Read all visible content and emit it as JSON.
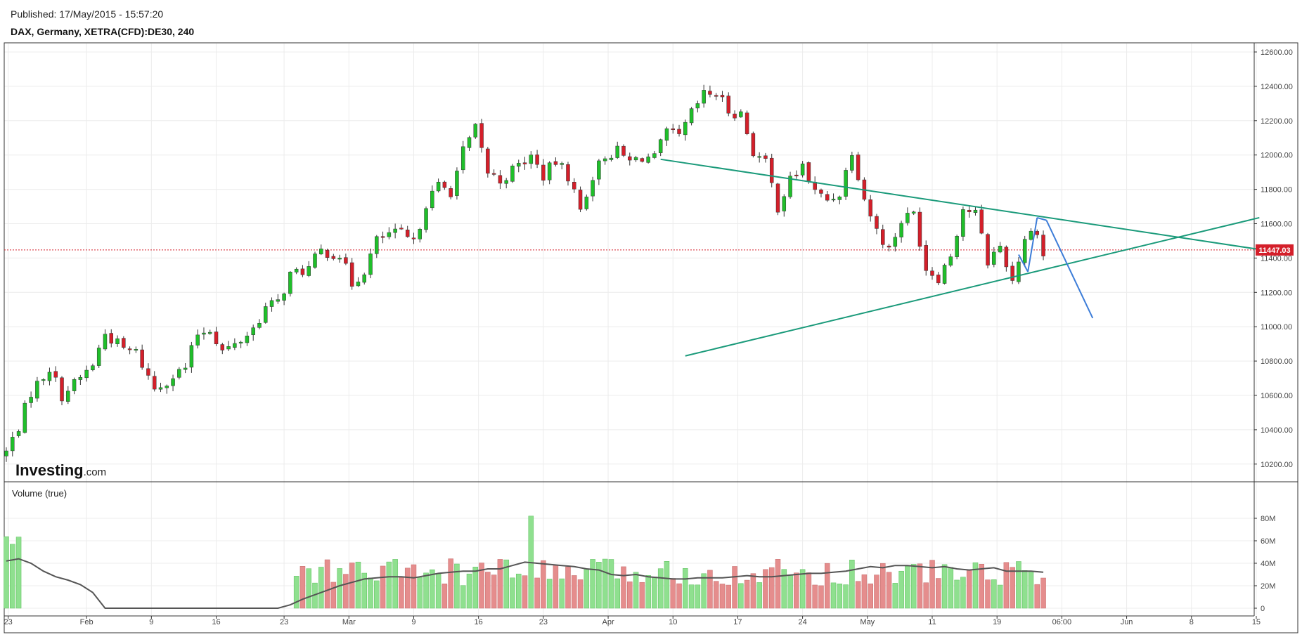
{
  "header": {
    "published": "Published: 17/May/2015 - 15:57:20",
    "instrument": "DAX, Germany, XETRA(CFD):DE30, 240"
  },
  "brand": {
    "bold": "Investing",
    "suffix": ".com"
  },
  "colors": {
    "up": "#1fbf2a",
    "down": "#d41f2a",
    "trendline": "#1a9a7a",
    "projection": "#3d7dd8",
    "price_line": "#d41f2a",
    "volume_up": "#8fe08f",
    "volume_down": "#e58d8d",
    "volume_ma": "#555555"
  },
  "chart_data": [
    {
      "type": "candlestick",
      "title": "DAX, Germany, XETRA(CFD):DE30, 240",
      "ylim": [
        10100,
        12700
      ],
      "y_ticks": [
        "12600.00",
        "12400.00",
        "12200.00",
        "12000.00",
        "11800.00",
        "11600.00",
        "11400.00",
        "11200.00",
        "11000.00",
        "10800.00",
        "10600.00",
        "10400.00",
        "10200.00"
      ],
      "y_tick_values": [
        12600,
        12400,
        12200,
        12000,
        11800,
        11600,
        11400,
        11200,
        11000,
        10800,
        10600,
        10400,
        10200
      ],
      "x_ticks": [
        "23",
        "Feb",
        "9",
        "16",
        "23",
        "Mar",
        "9",
        "16",
        "23",
        "Apr",
        "10",
        "17",
        "24",
        "May",
        "11",
        "19",
        "06:00",
        "Jun",
        "8",
        "15"
      ],
      "x_tick_index": [
        0.3,
        13,
        23.5,
        34,
        45,
        55.5,
        66,
        76.5,
        87,
        97.5,
        108,
        118.5,
        129,
        139.5,
        150,
        160.5,
        171,
        181.5,
        192,
        202.5
      ],
      "current_price": "11447.03",
      "current_value": 11447.03,
      "anchors": [
        [
          0,
          10270
        ],
        [
          2,
          10420
        ],
        [
          4,
          10620
        ],
        [
          7,
          10760
        ],
        [
          9,
          10600
        ],
        [
          12,
          10700
        ],
        [
          14,
          10780
        ],
        [
          16,
          10960
        ],
        [
          19,
          10870
        ],
        [
          21,
          10850
        ],
        [
          24,
          10640
        ],
        [
          26,
          10690
        ],
        [
          29,
          10760
        ],
        [
          31,
          10960
        ],
        [
          33,
          10990
        ],
        [
          35,
          10860
        ],
        [
          37,
          10890
        ],
        [
          40,
          10990
        ],
        [
          42,
          11110
        ],
        [
          44,
          11140
        ],
        [
          46,
          11300
        ],
        [
          49,
          11340
        ],
        [
          51,
          11440
        ],
        [
          54,
          11420
        ],
        [
          56,
          11250
        ],
        [
          58,
          11330
        ],
        [
          60,
          11500
        ],
        [
          62,
          11540
        ],
        [
          64,
          11540
        ],
        [
          66,
          11480
        ],
        [
          68,
          11720
        ],
        [
          70,
          11820
        ],
        [
          72,
          11790
        ],
        [
          74,
          12020
        ],
        [
          76,
          12150
        ],
        [
          78,
          11900
        ],
        [
          80,
          11850
        ],
        [
          83,
          11940
        ],
        [
          85,
          11990
        ],
        [
          87,
          11880
        ],
        [
          89,
          11960
        ],
        [
          91,
          11880
        ],
        [
          93,
          11680
        ],
        [
          95,
          11880
        ],
        [
          97,
          12000
        ],
        [
          99,
          12020
        ],
        [
          101,
          11960
        ],
        [
          103,
          11990
        ],
        [
          105,
          11980
        ],
        [
          107,
          12130
        ],
        [
          109,
          12100
        ],
        [
          111,
          12240
        ],
        [
          113,
          12350
        ],
        [
          115,
          12360
        ],
        [
          117,
          12260
        ],
        [
          119,
          12240
        ],
        [
          121,
          12020
        ],
        [
          123,
          11950
        ],
        [
          125,
          11700
        ],
        [
          127,
          11850
        ],
        [
          129,
          11940
        ],
        [
          131,
          11780
        ],
        [
          133,
          11740
        ],
        [
          135,
          11780
        ],
        [
          137,
          12030
        ],
        [
          139,
          11750
        ],
        [
          141,
          11560
        ],
        [
          143,
          11450
        ],
        [
          145,
          11620
        ],
        [
          147,
          11660
        ],
        [
          149,
          11340
        ],
        [
          151,
          11290
        ],
        [
          153,
          11420
        ],
        [
          155,
          11690
        ],
        [
          157,
          11660
        ],
        [
          159,
          11380
        ],
        [
          161,
          11470
        ],
        [
          163,
          11270
        ],
        [
          165,
          11520
        ],
        [
          167,
          11570
        ],
        [
          168,
          11410
        ]
      ],
      "trendlines": [
        {
          "points": [
            [
              106,
              11975
            ],
            [
              203,
              11450
            ]
          ]
        },
        {
          "points": [
            [
              110,
              10830
            ],
            [
              203,
              11635
            ]
          ]
        }
      ],
      "projection": [
        [
          164,
          11420
        ],
        [
          165.5,
          11320
        ],
        [
          167,
          11635
        ],
        [
          168.5,
          11620
        ],
        [
          176,
          11050
        ]
      ]
    },
    {
      "type": "bar",
      "title": "Volume (true)",
      "ylim": [
        0,
        85
      ],
      "y_ticks": [
        "80M",
        "60M",
        "40M",
        "20M",
        "0"
      ],
      "y_tick_values": [
        80,
        60,
        40,
        20,
        0
      ],
      "unit": "M",
      "gap": [
        3,
        47
      ],
      "spike": {
        "index": 85,
        "value": 82
      },
      "ma_anchors": [
        [
          0,
          42
        ],
        [
          2,
          44
        ],
        [
          4,
          40
        ],
        [
          6,
          33
        ],
        [
          8,
          28
        ],
        [
          10,
          25
        ],
        [
          12,
          21
        ],
        [
          14,
          14
        ],
        [
          16,
          0
        ],
        [
          44,
          0
        ],
        [
          46,
          3
        ],
        [
          48,
          8
        ],
        [
          50,
          12
        ],
        [
          52,
          16
        ],
        [
          54,
          20
        ],
        [
          56,
          23
        ],
        [
          58,
          26
        ],
        [
          60,
          27
        ],
        [
          62,
          28
        ],
        [
          64,
          28
        ],
        [
          66,
          27
        ],
        [
          68,
          29
        ],
        [
          70,
          31
        ],
        [
          72,
          32
        ],
        [
          74,
          33
        ],
        [
          76,
          33
        ],
        [
          78,
          35
        ],
        [
          80,
          35
        ],
        [
          82,
          38
        ],
        [
          84,
          41
        ],
        [
          86,
          40
        ],
        [
          88,
          39
        ],
        [
          90,
          38
        ],
        [
          92,
          37
        ],
        [
          94,
          35
        ],
        [
          96,
          34
        ],
        [
          98,
          30
        ],
        [
          100,
          29
        ],
        [
          102,
          30
        ],
        [
          104,
          28
        ],
        [
          106,
          27
        ],
        [
          108,
          26
        ],
        [
          110,
          26
        ],
        [
          112,
          27
        ],
        [
          114,
          27
        ],
        [
          116,
          27
        ],
        [
          118,
          28
        ],
        [
          120,
          29
        ],
        [
          122,
          28
        ],
        [
          124,
          28
        ],
        [
          126,
          29
        ],
        [
          128,
          30
        ],
        [
          130,
          31
        ],
        [
          132,
          31
        ],
        [
          134,
          32
        ],
        [
          136,
          33
        ],
        [
          138,
          35
        ],
        [
          140,
          37
        ],
        [
          142,
          36
        ],
        [
          144,
          38
        ],
        [
          146,
          38
        ],
        [
          148,
          37
        ],
        [
          150,
          36
        ],
        [
          152,
          37
        ],
        [
          154,
          35
        ],
        [
          156,
          34
        ],
        [
          158,
          35
        ],
        [
          160,
          36
        ],
        [
          162,
          33
        ],
        [
          164,
          33
        ],
        [
          166,
          33
        ],
        [
          168,
          32
        ]
      ]
    }
  ]
}
